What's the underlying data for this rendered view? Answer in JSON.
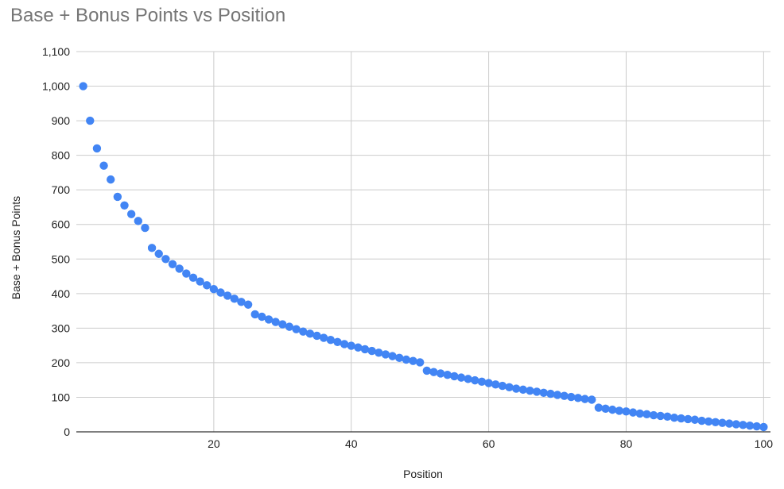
{
  "chart_data": {
    "type": "scatter",
    "title": "Base + Bonus Points vs Position",
    "xlabel": "Position",
    "ylabel": "Base + Bonus Points",
    "xlim": [
      0,
      101
    ],
    "ylim": [
      0,
      1100
    ],
    "xticks": [
      20,
      40,
      60,
      80,
      100
    ],
    "xtick_labels": [
      "20",
      "40",
      "60",
      "80",
      "100"
    ],
    "yticks": [
      0,
      100,
      200,
      300,
      400,
      500,
      600,
      700,
      800,
      900,
      1000,
      1100
    ],
    "ytick_labels": [
      "0",
      "100",
      "200",
      "300",
      "400",
      "500",
      "600",
      "700",
      "800",
      "900",
      "1,000",
      "1,100"
    ],
    "grid": true,
    "point_color": "#4285f4",
    "grid_color": "#cccccc",
    "axis_color": "#333333",
    "series": [
      {
        "x": [
          1,
          2,
          3,
          4,
          5,
          6,
          7,
          8,
          9,
          10,
          11,
          12,
          13,
          14,
          15,
          16,
          17,
          18,
          19,
          20,
          21,
          22,
          23,
          24,
          25,
          26,
          27,
          28,
          29,
          30,
          31,
          32,
          33,
          34,
          35,
          36,
          37,
          38,
          39,
          40,
          41,
          42,
          43,
          44,
          45,
          46,
          47,
          48,
          49,
          50,
          51,
          52,
          53,
          54,
          55,
          56,
          57,
          58,
          59,
          60,
          61,
          62,
          63,
          64,
          65,
          66,
          67,
          68,
          69,
          70,
          71,
          72,
          73,
          74,
          75,
          76,
          77,
          78,
          79,
          80,
          81,
          82,
          83,
          84,
          85,
          86,
          87,
          88,
          89,
          90,
          91,
          92,
          93,
          94,
          95,
          96,
          97,
          98,
          99,
          100
        ],
        "values": [
          1000,
          900,
          820,
          770,
          730,
          680,
          655,
          630,
          610,
          590,
          532,
          515,
          500,
          485,
          472,
          458,
          446,
          435,
          424,
          413,
          403,
          394,
          385,
          376,
          368,
          340,
          333,
          325,
          318,
          311,
          304,
          297,
          290,
          284,
          278,
          272,
          266,
          260,
          254,
          249,
          244,
          239,
          234,
          229,
          224,
          219,
          214,
          209,
          205,
          201,
          177,
          173,
          169,
          165,
          161,
          157,
          153,
          149,
          145,
          141,
          137,
          133,
          129,
          125,
          122,
          119,
          116,
          113,
          110,
          107,
          104,
          101,
          98,
          95,
          93,
          70,
          67,
          64,
          61,
          59,
          56,
          53,
          51,
          48,
          46,
          44,
          41,
          39,
          37,
          35,
          32,
          30,
          28,
          26,
          24,
          22,
          20,
          18,
          16,
          14
        ]
      }
    ]
  }
}
